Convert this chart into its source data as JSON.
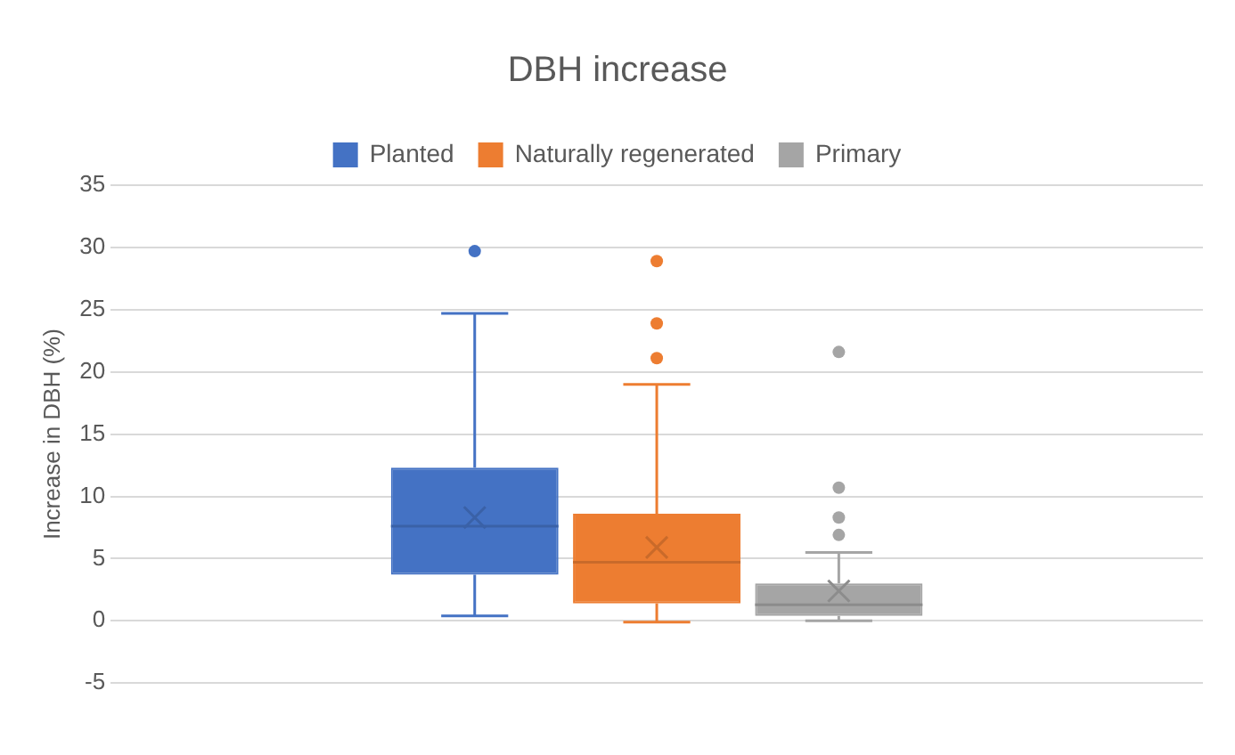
{
  "chart_data": {
    "type": "box",
    "title": "DBH increase",
    "ylabel": "Increase in DBH (%)",
    "categories": [
      null
    ],
    "series": [
      {
        "name": "Planted",
        "color": "#4472c4",
        "boxes": [
          {
            "low": 0.4,
            "q1": 3.7,
            "median": 7.6,
            "q3": 12.3,
            "high": 24.7,
            "mean": 8.3,
            "outliers": [
              29.7
            ]
          }
        ]
      },
      {
        "name": "Naturally regenerated",
        "color": "#ed7d31",
        "boxes": [
          {
            "low": -0.1,
            "q1": 1.4,
            "median": 4.7,
            "q3": 8.6,
            "high": 19.0,
            "mean": 5.9,
            "outliers": [
              28.9,
              23.9,
              21.1
            ]
          }
        ]
      },
      {
        "name": "Primary",
        "color": "#a5a5a5",
        "boxes": [
          {
            "low": 0,
            "q1": 0.4,
            "median": 1.3,
            "q3": 3.0,
            "high": 5.5,
            "mean": 2.4,
            "outliers": [
              21.6,
              10.7,
              8.3,
              6.9
            ]
          }
        ]
      }
    ],
    "ylim": [
      -5,
      35
    ],
    "yticks": [
      -5,
      0,
      5,
      10,
      15,
      20,
      25,
      30,
      35
    ],
    "grid": "y",
    "legend": "top"
  }
}
